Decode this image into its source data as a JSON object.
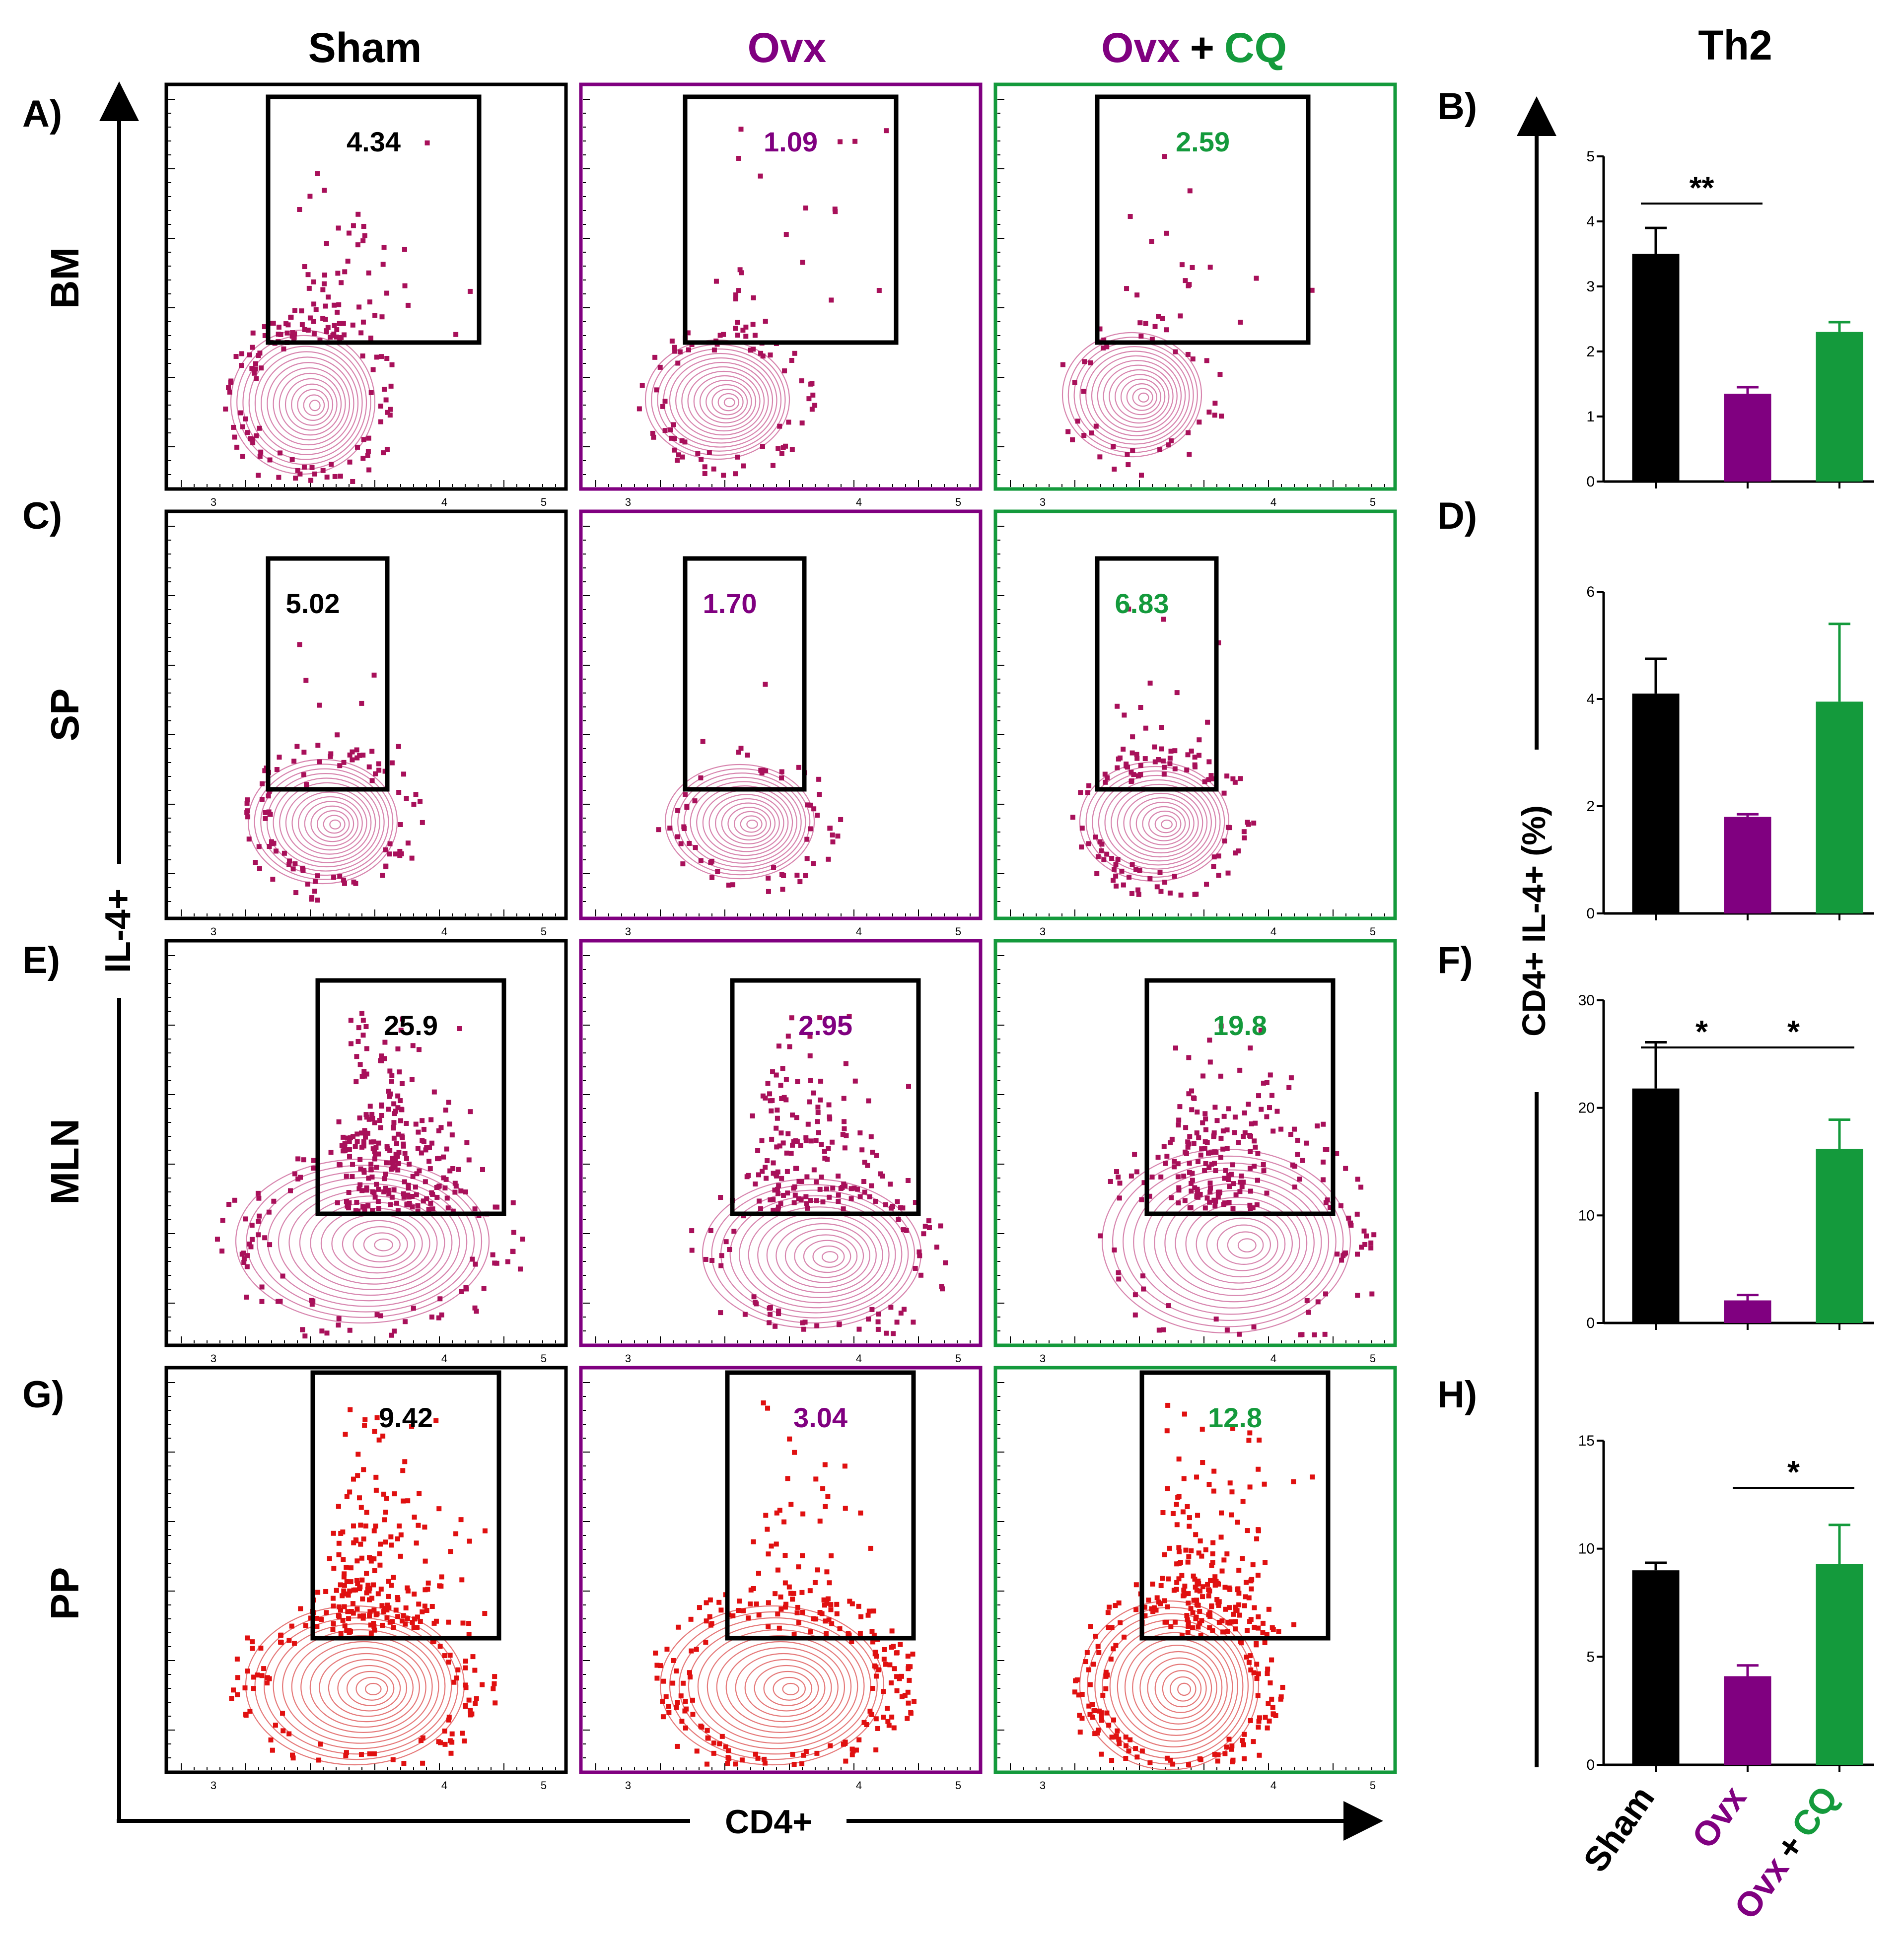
{
  "columns": [
    "Sham",
    "Ovx",
    "Ovx",
    "+",
    "CQ"
  ],
  "th2_title": "Th2",
  "panel_letters": [
    "A)",
    "B)",
    "C)",
    "D)",
    "E)",
    "F)",
    "G)",
    "H)"
  ],
  "rows": [
    "BM",
    "SP",
    "MLN",
    "PP"
  ],
  "y_axis_left": "IL-4+",
  "x_axis": "CD4+",
  "bar_axis_label": "CD4+ IL-4+ (%)",
  "colors": {
    "sham": "#000000",
    "ovx": "#800080",
    "cq": "#149A3C",
    "magenta_dots": "#A8105A",
    "pink_contour": "#D070A0",
    "red_dots": "#E01010",
    "red_contour": "#E06060"
  },
  "flow_values": [
    [
      "4.34",
      "1.09",
      "2.59"
    ],
    [
      "5.02",
      "1.70",
      "6.83"
    ],
    [
      "25.9",
      "2.95",
      "19.8"
    ],
    [
      "9.42",
      "3.04",
      "12.8"
    ]
  ],
  "chart_data": [
    {
      "type": "bar",
      "panel": "B)",
      "categories": [
        "Sham",
        "Ovx",
        "Ovx + CQ"
      ],
      "values": [
        3.5,
        1.35,
        2.3
      ],
      "errors": [
        0.4,
        0.1,
        0.15
      ],
      "ylim": [
        0,
        5
      ],
      "yticks": [
        "0",
        "1",
        "2",
        "3",
        "4",
        "5"
      ],
      "significance": [
        {
          "from": 0,
          "to": 1,
          "label": "**"
        }
      ]
    },
    {
      "type": "bar",
      "panel": "D)",
      "categories": [
        "Sham",
        "Ovx",
        "Ovx + CQ"
      ],
      "values": [
        4.1,
        1.8,
        3.95
      ],
      "errors": [
        0.65,
        0.05,
        1.45
      ],
      "ylim": [
        0,
        6
      ],
      "yticks": [
        "0",
        "2",
        "4",
        "6"
      ],
      "significance": []
    },
    {
      "type": "bar",
      "panel": "F)",
      "categories": [
        "Sham",
        "Ovx",
        "Ovx + CQ"
      ],
      "values": [
        21.8,
        2.1,
        16.2
      ],
      "errors": [
        4.3,
        0.5,
        2.7
      ],
      "ylim": [
        0,
        30
      ],
      "yticks": [
        "0",
        "10",
        "20",
        "30"
      ],
      "significance": [
        {
          "from": 0,
          "to": 1,
          "label": "*"
        },
        {
          "from": 1,
          "to": 2,
          "label": "*"
        }
      ]
    },
    {
      "type": "bar",
      "panel": "H)",
      "categories": [
        "Sham",
        "Ovx",
        "Ovx + CQ"
      ],
      "values": [
        9.0,
        4.1,
        9.3
      ],
      "errors": [
        0.35,
        0.5,
        1.8
      ],
      "ylim": [
        0,
        15
      ],
      "yticks": [
        "0",
        "5",
        "10",
        "15"
      ],
      "significance": [
        {
          "from": 1,
          "to": 2,
          "label": "*"
        }
      ]
    }
  ],
  "bar_x_labels": [
    "Sham",
    "Ovx",
    "Ovx",
    "+",
    "CQ"
  ],
  "flow_tick_labels": [
    "3",
    "4",
    "5"
  ]
}
